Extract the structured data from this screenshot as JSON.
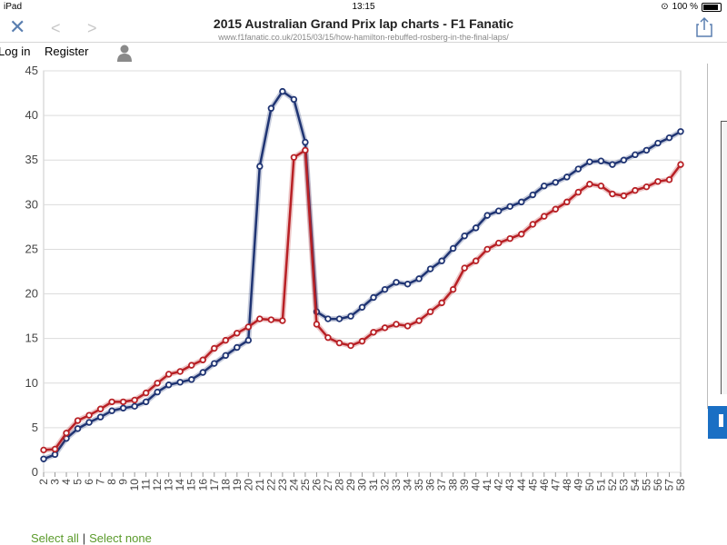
{
  "status_bar": {
    "device": "iPad",
    "time": "13:15",
    "battery": "100 %"
  },
  "browser": {
    "title": "2015 Australian Grand Prix lap charts - F1 Fanatic",
    "url": "www.f1fanatic.co.uk/2015/03/15/how-hamilton-rebuffed-rosberg-in-the-final-laps/"
  },
  "nav": {
    "login": "Log in",
    "register": "Register"
  },
  "footer": {
    "select_all": "Select all",
    "separator": "|",
    "select_none": "Select none"
  },
  "chart_data": {
    "type": "line",
    "ylim": [
      0,
      45
    ],
    "yticks": [
      0,
      5,
      10,
      15,
      20,
      25,
      30,
      35,
      40,
      45
    ],
    "grid": true,
    "x": [
      2,
      3,
      4,
      5,
      6,
      7,
      8,
      9,
      10,
      11,
      12,
      13,
      14,
      15,
      16,
      17,
      18,
      19,
      20,
      21,
      22,
      23,
      24,
      25,
      26,
      27,
      28,
      29,
      30,
      31,
      32,
      33,
      34,
      35,
      36,
      37,
      38,
      39,
      40,
      41,
      42,
      43,
      44,
      45,
      46,
      47,
      48,
      49,
      50,
      51,
      52,
      53,
      54,
      55,
      56,
      57,
      58
    ],
    "series": [
      {
        "color": "#1f3473",
        "values": [
          1.5,
          2.0,
          3.8,
          4.9,
          5.6,
          6.2,
          6.9,
          7.2,
          7.4,
          7.9,
          9.0,
          9.8,
          10.1,
          10.4,
          11.2,
          12.2,
          13.1,
          14.0,
          14.8,
          34.3,
          40.8,
          42.7,
          41.8,
          37.0,
          18.0,
          17.2,
          17.2,
          17.5,
          18.5,
          19.6,
          20.5,
          21.3,
          21.1,
          21.7,
          22.8,
          23.7,
          25.1,
          26.5,
          27.4,
          28.8,
          29.3,
          29.8,
          30.3,
          31.1,
          32.1,
          32.5,
          33.1,
          34.0,
          34.8,
          34.9,
          34.5,
          35.0,
          35.6,
          36.1,
          36.9,
          37.5,
          38.2
        ]
      },
      {
        "color": "#b82025",
        "values": [
          2.5,
          2.6,
          4.4,
          5.8,
          6.4,
          7.1,
          7.9,
          7.9,
          8.1,
          8.9,
          10.0,
          11.0,
          11.3,
          12.0,
          12.6,
          13.9,
          14.8,
          15.6,
          16.3,
          17.2,
          17.1,
          17.0,
          35.3,
          36.1,
          16.6,
          15.1,
          14.5,
          14.2,
          14.7,
          15.7,
          16.2,
          16.6,
          16.4,
          17.0,
          18.0,
          19.0,
          20.5,
          22.9,
          23.7,
          25.0,
          25.7,
          26.2,
          26.7,
          27.8,
          28.7,
          29.5,
          30.3,
          31.4,
          32.3,
          32.1,
          31.2,
          31.0,
          31.6,
          32.0,
          32.6,
          32.8,
          34.5
        ]
      }
    ]
  }
}
